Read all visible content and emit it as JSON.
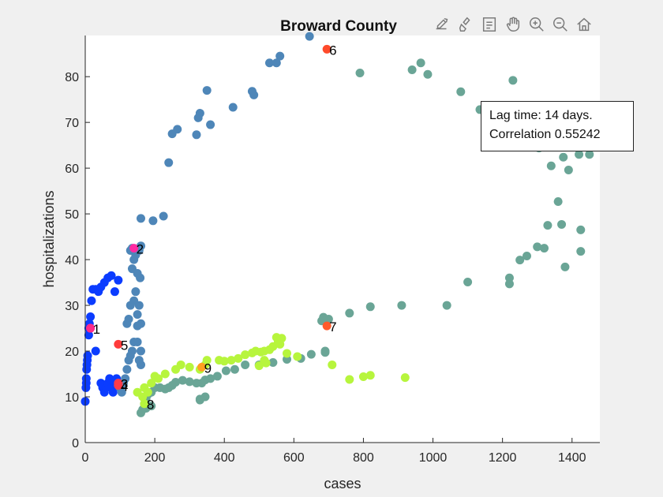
{
  "toolbar": {
    "icons": [
      "export-icon",
      "brush-icon",
      "legend-icon",
      "pan-icon",
      "zoom-in-icon",
      "zoom-out-icon",
      "home-icon"
    ]
  },
  "annotation": {
    "lag_label": "Lag time: 14 days.",
    "corr_label": "Correlation 0.55242"
  },
  "chart_data": {
    "type": "scatter",
    "title": "Broward County",
    "xlabel": "cases",
    "ylabel": "hospitalizations",
    "xlim": [
      0,
      1480
    ],
    "ylim": [
      0,
      89
    ],
    "xticks": [
      0,
      200,
      400,
      600,
      800,
      1000,
      1200,
      1400
    ],
    "yticks": [
      0,
      10,
      20,
      30,
      40,
      50,
      60,
      70,
      80
    ],
    "grid": false,
    "colormap": [
      "#0b3cff",
      "#4e86b8",
      "#6aa596",
      "#b7f53d"
    ],
    "series": [
      {
        "color": "#0b3cff",
        "points": [
          [
            0,
            9
          ],
          [
            2,
            12
          ],
          [
            3,
            13
          ],
          [
            3,
            14
          ],
          [
            4,
            16
          ],
          [
            5,
            17
          ],
          [
            6,
            18
          ],
          [
            7,
            19
          ],
          [
            10,
            23.5
          ],
          [
            10,
            25
          ],
          [
            12,
            26
          ],
          [
            15,
            27.5
          ],
          [
            18,
            31
          ],
          [
            22,
            33.5
          ],
          [
            30,
            33.5
          ],
          [
            38,
            33
          ],
          [
            45,
            34
          ],
          [
            55,
            35
          ],
          [
            65,
            36
          ],
          [
            75,
            36.5
          ],
          [
            85,
            33
          ],
          [
            95,
            35.5
          ],
          [
            30,
            20
          ],
          [
            45,
            13
          ],
          [
            50,
            12
          ],
          [
            55,
            11
          ],
          [
            60,
            12
          ],
          [
            65,
            13
          ],
          [
            70,
            14
          ],
          [
            75,
            12
          ],
          [
            80,
            11
          ],
          [
            85,
            13
          ],
          [
            90,
            14
          ]
        ]
      },
      {
        "color": "#4e86b8",
        "points": [
          [
            100,
            12
          ],
          [
            105,
            11
          ],
          [
            110,
            13
          ],
          [
            115,
            14
          ],
          [
            120,
            16
          ],
          [
            125,
            18
          ],
          [
            130,
            19
          ],
          [
            135,
            20
          ],
          [
            140,
            22
          ],
          [
            150,
            22
          ],
          [
            160,
            20
          ],
          [
            155,
            18
          ],
          [
            160,
            17
          ],
          [
            150,
            25.5
          ],
          [
            160,
            26
          ],
          [
            150,
            28
          ],
          [
            155,
            30
          ],
          [
            140,
            31
          ],
          [
            145,
            33
          ],
          [
            150,
            37
          ],
          [
            158,
            36
          ],
          [
            120,
            26
          ],
          [
            125,
            27
          ],
          [
            130,
            30
          ],
          [
            135,
            38
          ],
          [
            140,
            40
          ],
          [
            145,
            41
          ],
          [
            130,
            42
          ],
          [
            135,
            42.5
          ],
          [
            155,
            42
          ],
          [
            160,
            43
          ],
          [
            160,
            49
          ],
          [
            195,
            48.5
          ],
          [
            225,
            49.5
          ],
          [
            240,
            61.2
          ],
          [
            250,
            67.5
          ],
          [
            265,
            68.5
          ],
          [
            320,
            67.3
          ],
          [
            325,
            71
          ],
          [
            330,
            72
          ],
          [
            350,
            77
          ],
          [
            360,
            69.5
          ],
          [
            425,
            73.3
          ],
          [
            480,
            76.8
          ],
          [
            485,
            76
          ],
          [
            530,
            83
          ],
          [
            550,
            83
          ],
          [
            560,
            84.5
          ],
          [
            645,
            88.8
          ]
        ]
      },
      {
        "color": "#6aa596",
        "points": [
          [
            790,
            80.8
          ],
          [
            940,
            81.5
          ],
          [
            965,
            83
          ],
          [
            985,
            80.5
          ],
          [
            1080,
            76.7
          ],
          [
            1135,
            72.8
          ],
          [
            1200,
            73.7
          ],
          [
            1230,
            79.2
          ],
          [
            1250,
            70.2
          ],
          [
            1305,
            64.4
          ],
          [
            1340,
            60.5
          ],
          [
            1360,
            68
          ],
          [
            1375,
            62.4
          ],
          [
            1390,
            59.6
          ],
          [
            1420,
            63
          ],
          [
            1450,
            63
          ],
          [
            1465,
            67
          ],
          [
            1475,
            69.5
          ],
          [
            1330,
            47.5
          ],
          [
            1360,
            52.7
          ],
          [
            1370,
            47.7
          ],
          [
            1380,
            38.4
          ],
          [
            1425,
            46.5
          ],
          [
            1425,
            41.8
          ],
          [
            1300,
            42.8
          ],
          [
            1320,
            42.5
          ],
          [
            1270,
            40.8
          ],
          [
            1250,
            39.9
          ],
          [
            1220,
            36
          ],
          [
            1220,
            34.7
          ],
          [
            1100,
            35.1
          ],
          [
            1040,
            30
          ],
          [
            910,
            30
          ],
          [
            820,
            29.7
          ],
          [
            760,
            28.3
          ],
          [
            700,
            27
          ],
          [
            685,
            27.4
          ],
          [
            680,
            26.6
          ],
          [
            690,
            20
          ],
          [
            690,
            19.7
          ],
          [
            650,
            19.3
          ],
          [
            620,
            18.4
          ],
          [
            580,
            18.2
          ],
          [
            540,
            17.5
          ],
          [
            500,
            17
          ],
          [
            460,
            17
          ],
          [
            430,
            16
          ],
          [
            405,
            15.7
          ],
          [
            380,
            14.5
          ],
          [
            360,
            14
          ],
          [
            345,
            13.7
          ],
          [
            335,
            13
          ],
          [
            320,
            13
          ],
          [
            300,
            13.3
          ],
          [
            280,
            13.6
          ],
          [
            260,
            13.2
          ],
          [
            250,
            12.5
          ],
          [
            240,
            12
          ],
          [
            230,
            11.7
          ],
          [
            215,
            12
          ],
          [
            200,
            12
          ],
          [
            190,
            11
          ],
          [
            180,
            10.5
          ],
          [
            175,
            9.5
          ],
          [
            170,
            8.5
          ],
          [
            165,
            7.2
          ],
          [
            160,
            6.5
          ],
          [
            175,
            7.5
          ],
          [
            190,
            8
          ],
          [
            345,
            10
          ],
          [
            330,
            9.3
          ],
          [
            330,
            9.5
          ]
        ]
      },
      {
        "color": "#b7f53d",
        "points": [
          [
            150,
            11
          ],
          [
            165,
            10
          ],
          [
            170,
            12
          ],
          [
            180,
            11
          ],
          [
            190,
            13
          ],
          [
            200,
            14.5
          ],
          [
            210,
            14
          ],
          [
            230,
            15
          ],
          [
            260,
            16
          ],
          [
            275,
            17
          ],
          [
            300,
            16.5
          ],
          [
            330,
            16
          ],
          [
            345,
            17
          ],
          [
            350,
            18
          ],
          [
            385,
            18
          ],
          [
            400,
            17.8
          ],
          [
            420,
            18
          ],
          [
            440,
            18.4
          ],
          [
            460,
            19.2
          ],
          [
            480,
            19.6
          ],
          [
            490,
            20
          ],
          [
            505,
            19.8
          ],
          [
            515,
            20
          ],
          [
            530,
            20.3
          ],
          [
            540,
            21
          ],
          [
            555,
            22
          ],
          [
            565,
            22.8
          ],
          [
            550,
            23
          ],
          [
            560,
            21.5
          ],
          [
            580,
            19.5
          ],
          [
            610,
            18.8
          ],
          [
            710,
            17
          ],
          [
            760,
            13.8
          ],
          [
            800,
            14.4
          ],
          [
            820,
            14.7
          ],
          [
            920,
            14.2
          ],
          [
            515,
            18
          ],
          [
            520,
            17.4
          ],
          [
            500,
            16.8
          ]
        ]
      },
      {
        "color": "#ff2bd6",
        "points": [
          [
            15,
            25
          ]
        ]
      }
    ],
    "highlights": [
      {
        "label": "1",
        "x": 15,
        "y": 25,
        "color": "#ff2a8a"
      },
      {
        "label": "2",
        "x": 140,
        "y": 42.5,
        "color": "#ff2aa2"
      },
      {
        "label": "3",
        "x": 95,
        "y": 13,
        "color": "#ff3b4a"
      },
      {
        "label": "4",
        "x": 95,
        "y": 12.5,
        "color": "#ff3b4a"
      },
      {
        "label": "5",
        "x": 95,
        "y": 21.5,
        "color": "#ff3b3b"
      },
      {
        "label": "6",
        "x": 695,
        "y": 86,
        "color": "#ff4a2a"
      },
      {
        "label": "7",
        "x": 695,
        "y": 25.5,
        "color": "#ff5a2a"
      },
      {
        "label": "8",
        "x": 170,
        "y": 8.5,
        "color": "#b7f53d"
      },
      {
        "label": "9",
        "x": 335,
        "y": 16.5,
        "color": "#ffa020"
      }
    ]
  }
}
